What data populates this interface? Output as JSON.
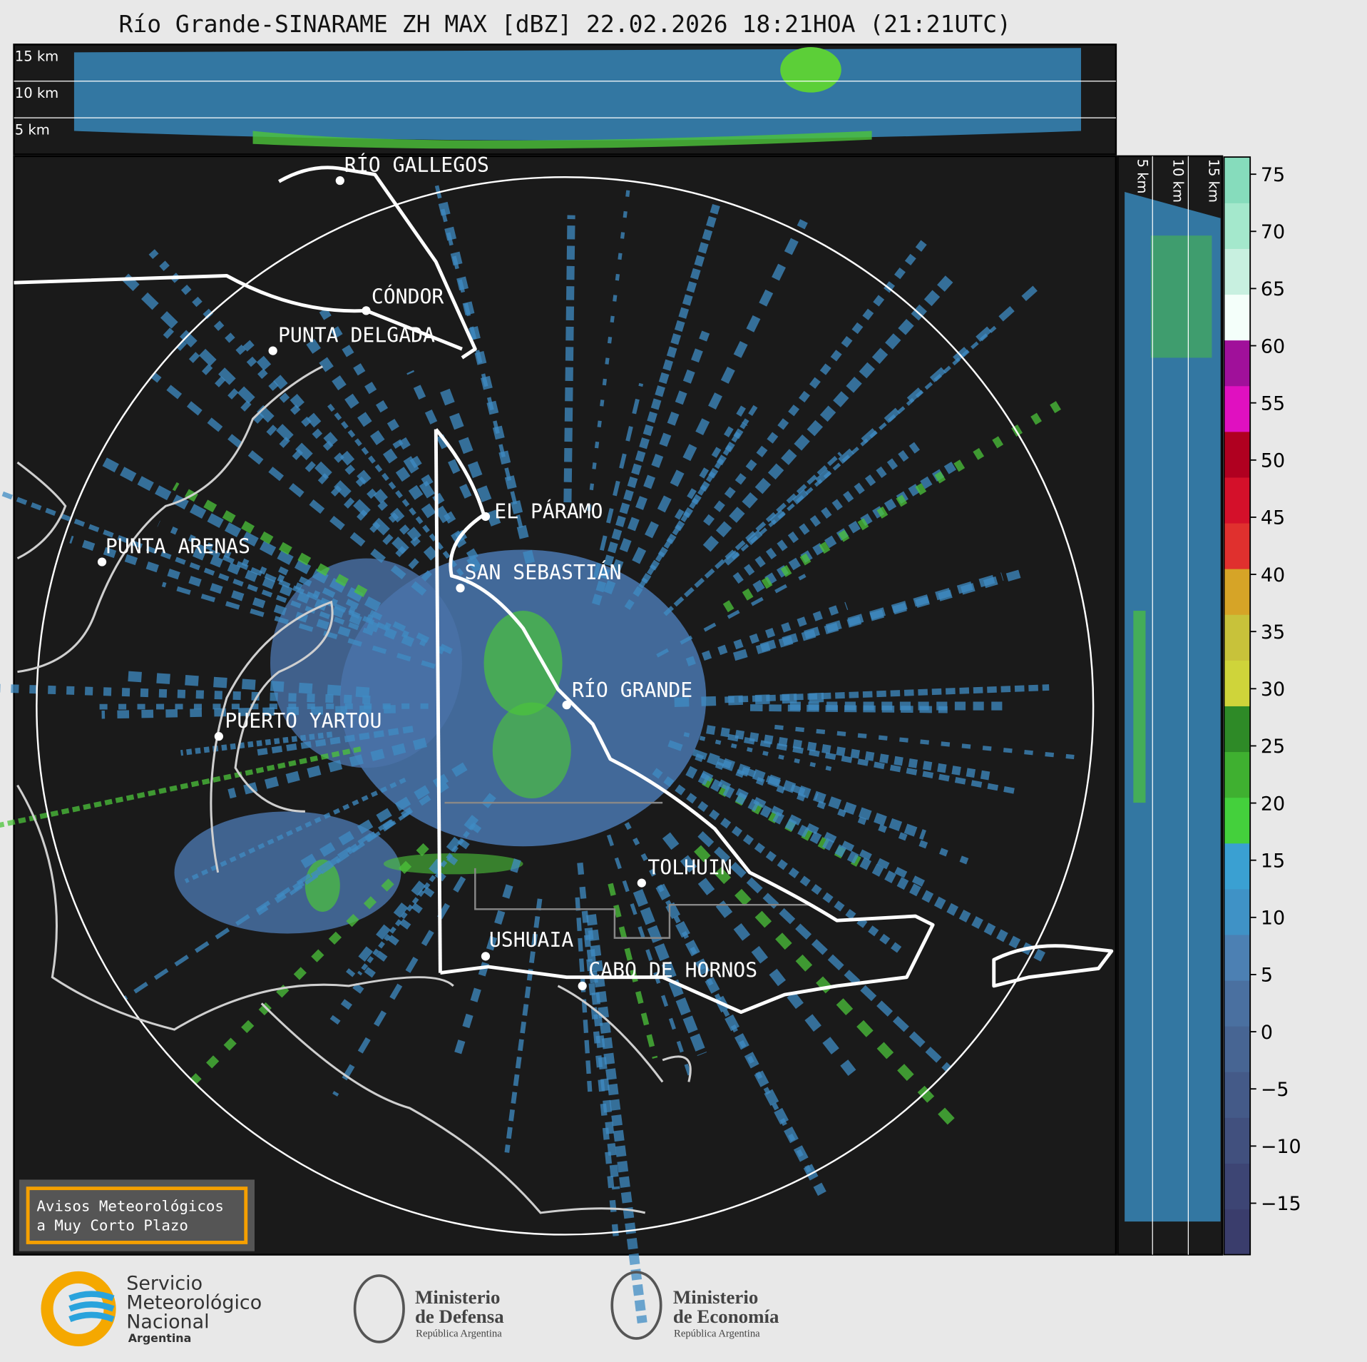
{
  "header": {
    "title": "Río Grande-SINARAME ZH MAX [dBZ] 22.02.2026 18:21HOA (21:21UTC)"
  },
  "top_panel": {
    "labels": [
      "15 km",
      "10 km",
      "5 km"
    ]
  },
  "side_panel": {
    "labels": [
      "5 km",
      "10 km",
      "15 km"
    ]
  },
  "cities": [
    {
      "name": "RÍO GALLEGOS"
    },
    {
      "name": "CÓNDOR"
    },
    {
      "name": "PUNTA DELGADA"
    },
    {
      "name": "EL PÁRAMO"
    },
    {
      "name": "PUNTA ARENAS"
    },
    {
      "name": "SAN SEBASTIÁN"
    },
    {
      "name": "RÍO GRANDE"
    },
    {
      "name": "PUERTO YARTOU"
    },
    {
      "name": "TOLHUIN"
    },
    {
      "name": "USHUAIA"
    },
    {
      "name": "CABO DE HORNOS"
    }
  ],
  "colorbar": {
    "lim": [
      -19.5,
      76.5
    ],
    "ticks": [
      75,
      70,
      65,
      60,
      55,
      50,
      45,
      40,
      35,
      30,
      25,
      20,
      15,
      10,
      5,
      0,
      {
        "value": -5,
        "label": "−5"
      },
      {
        "value": -10,
        "label": "−10"
      },
      {
        "value": -15,
        "label": "−15"
      }
    ],
    "colors": [
      "#3a3d6c",
      "#3d4574",
      "#41507e",
      "#445a88",
      "#476593",
      "#4a70a0",
      "#4c80b3",
      "#3f92c6",
      "#3aa0d2",
      "#44d03c",
      "#3fb030",
      "#2e8a27",
      "#cfd43a",
      "#c8c23a",
      "#d6a427",
      "#e0302e",
      "#d4102a",
      "#b00020",
      "#e010c0",
      "#a0109a",
      "#f4fffa",
      "#c8f0e0",
      "#a4e8cc",
      "#86dcbc"
    ]
  },
  "warning_box": {
    "lines": [
      "Avisos Meteorológicos",
      "a Muy Corto Plazo"
    ]
  },
  "footer": {
    "smn": [
      "Servicio",
      "Meteorológico",
      "Nacional",
      "Argentina"
    ],
    "defensa": [
      "Ministerio",
      "de Defensa",
      "República Argentina"
    ],
    "economia": [
      "Ministerio",
      "de Economía",
      "República Argentina"
    ]
  }
}
